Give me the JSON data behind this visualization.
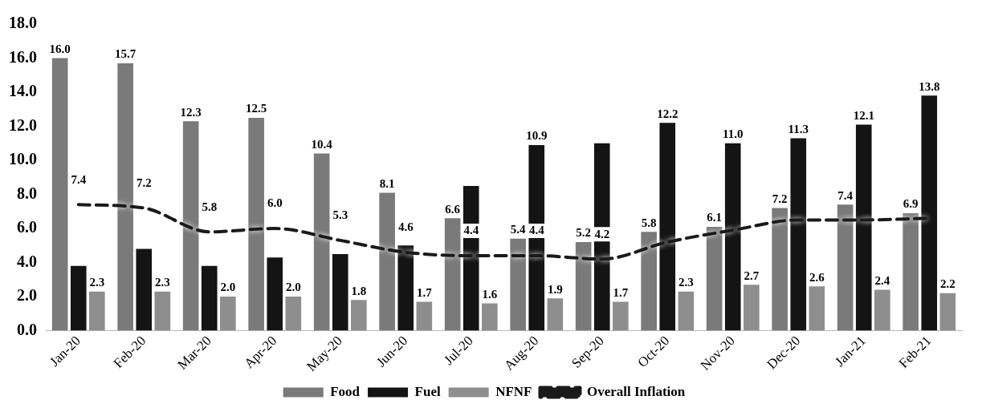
{
  "chart_data": {
    "type": "bar",
    "categories": [
      "Jan-20",
      "Feb-20",
      "Mar-20",
      "Apr-20",
      "May-20",
      "Jun-20",
      "Jul-20",
      "Aug-20",
      "Sep-20",
      "Oct-20",
      "Nov-20",
      "Dec-20",
      "Jan-21",
      "Feb-21"
    ],
    "series": [
      {
        "name": "Food",
        "color": "#7a7a7a",
        "values": [
          16.0,
          15.7,
          12.3,
          12.5,
          10.4,
          8.1,
          6.6,
          5.4,
          5.2,
          5.8,
          6.1,
          7.2,
          7.4,
          6.9
        ],
        "value_labels": [
          "16.0",
          "15.7",
          "12.3",
          "12.5",
          "10.4",
          "8.1",
          "6.6",
          "5.4",
          "5.2",
          "5.8",
          "6.1",
          "7.2",
          "7.4",
          "6.9"
        ]
      },
      {
        "name": "Fuel",
        "color": "#141414",
        "values": [
          3.8,
          4.8,
          3.8,
          4.3,
          4.5,
          5.0,
          8.5,
          10.9,
          11.0,
          12.2,
          11.0,
          11.3,
          12.1,
          13.8
        ],
        "value_labels": [
          null,
          null,
          null,
          null,
          null,
          null,
          null,
          "10.9",
          null,
          "12.2",
          "11.0",
          "11.3",
          "12.1",
          "13.8"
        ]
      },
      {
        "name": "NFNF",
        "color": "#8e8e8e",
        "values": [
          2.3,
          2.3,
          2.0,
          2.0,
          1.8,
          1.7,
          1.6,
          1.9,
          1.7,
          2.3,
          2.7,
          2.6,
          2.4,
          2.2
        ],
        "value_labels": [
          "2.3",
          "2.3",
          "2.0",
          "2.0",
          "1.8",
          "1.7",
          "1.6",
          "1.9",
          "1.7",
          "2.3",
          "2.7",
          "2.6",
          "2.4",
          "2.2"
        ]
      },
      {
        "name": "Overall Inflation",
        "type": "line",
        "color": "#1a1a1a",
        "line_style": "dashed",
        "marker": "none",
        "values": [
          7.4,
          7.2,
          5.8,
          6.0,
          5.3,
          4.6,
          4.4,
          4.4,
          4.2,
          5.2,
          5.9,
          6.5,
          6.5,
          6.6
        ],
        "value_labels": [
          "7.4",
          "7.2",
          "5.8",
          "6.0",
          "5.3",
          "4.6",
          "4.4",
          "4.4",
          "4.2",
          null,
          null,
          null,
          null,
          null
        ]
      }
    ],
    "ylim": [
      0,
      18
    ],
    "yticks": [
      {
        "value": 0,
        "label": "0.0"
      },
      {
        "value": 2,
        "label": "2.0"
      },
      {
        "value": 4,
        "label": "4.0"
      },
      {
        "value": 6,
        "label": "6.0"
      },
      {
        "value": 8,
        "label": "8.0"
      },
      {
        "value": 10,
        "label": "10.0"
      },
      {
        "value": 12,
        "label": "12.0"
      },
      {
        "value": 14,
        "label": "14.0"
      },
      {
        "value": 16,
        "label": "16.0"
      },
      {
        "value": 18,
        "label": "18.0"
      }
    ],
    "grid": false,
    "legend": "bottom"
  }
}
